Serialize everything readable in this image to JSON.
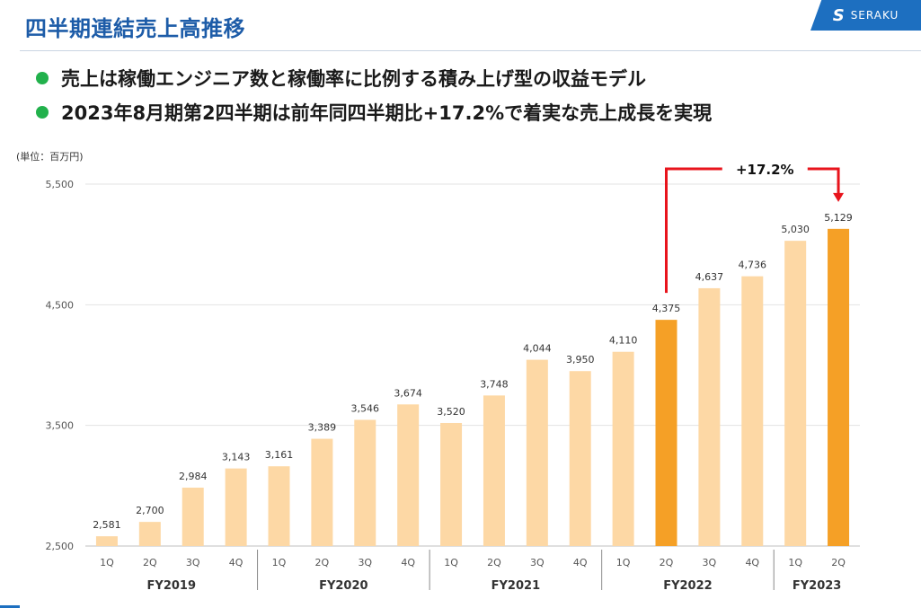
{
  "header": {
    "title": "四半期連結売上高推移",
    "logo_text": "SERAKU"
  },
  "bullets": [
    "売上は稼働エンジニア数と稼働率に比例する積み上げ型の収益モデル",
    "2023年8月期第2四半期は前年同四半期比+17.2%で着実な売上成長を実現"
  ],
  "colors": {
    "title": "#1d5ca8",
    "bullet_dot": "#22b14c",
    "bar_light": "#fdd8a5",
    "bar_highlight": "#f5a026",
    "growth_arrow": "#e8141c",
    "logo_bg": "#1d6fc0"
  },
  "chart_data": {
    "type": "bar",
    "unit_label": "(単位：百万円)",
    "ylim": [
      2500,
      5500
    ],
    "yticks": [
      "2,500",
      "3,500",
      "4,500",
      "5,500"
    ],
    "ytick_values": [
      2500,
      3500,
      4500,
      5500
    ],
    "grid": true,
    "categories": [
      "1Q",
      "2Q",
      "3Q",
      "4Q",
      "1Q",
      "2Q",
      "3Q",
      "4Q",
      "1Q",
      "2Q",
      "3Q",
      "4Q",
      "1Q",
      "2Q",
      "3Q",
      "4Q",
      "1Q",
      "2Q"
    ],
    "values": [
      2581,
      2700,
      2984,
      3143,
      3161,
      3389,
      3546,
      3674,
      3520,
      3748,
      4044,
      3950,
      4110,
      4375,
      4637,
      4736,
      5030,
      5129
    ],
    "value_labels": [
      "2,581",
      "2,700",
      "2,984",
      "3,143",
      "3,161",
      "3,389",
      "3,546",
      "3,674",
      "3,520",
      "3,748",
      "4,044",
      "3,950",
      "4,110",
      "4,375",
      "4,637",
      "4,736",
      "5,030",
      "5,129"
    ],
    "highlighted": [
      13,
      17
    ],
    "groups": [
      {
        "label": "FY2019",
        "count": 4
      },
      {
        "label": "FY2020",
        "count": 4
      },
      {
        "label": "FY2021",
        "count": 4
      },
      {
        "label": "FY2022",
        "count": 4
      },
      {
        "label": "FY2023",
        "count": 2
      }
    ],
    "annotation": {
      "text": "+17.2%",
      "from_index": 13,
      "to_index": 17
    }
  }
}
